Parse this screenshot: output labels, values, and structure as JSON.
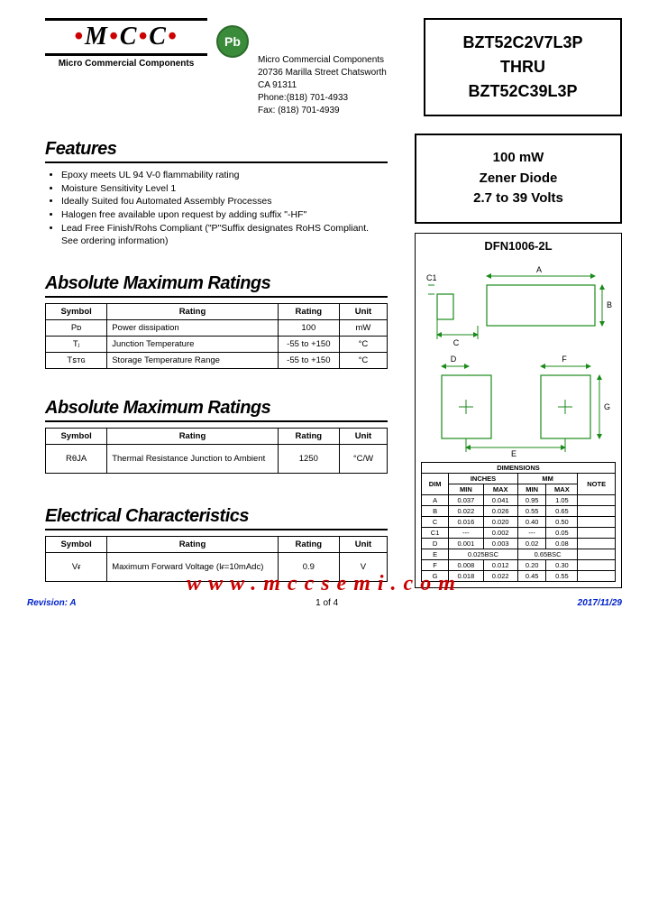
{
  "logo": {
    "text": "MCC",
    "subtitle": "Micro Commercial Components"
  },
  "pb_badge": "Pb",
  "address": {
    "name": "Micro Commercial Components",
    "street": "20736 Marilla Street Chatsworth",
    "city": "CA 91311",
    "phone": "Phone:(818) 701-4933",
    "fax": "Fax:       (818) 701-4939"
  },
  "part_box": {
    "l1": "BZT52C2V7L3P",
    "l2": "THRU",
    "l3": "BZT52C39L3P"
  },
  "desc_box": {
    "l1": "100 mW",
    "l2": "Zener Diode",
    "l3": "2.7 to 39 Volts"
  },
  "features": {
    "title": "Features",
    "items": [
      "Epoxy meets UL 94 V-0 flammability rating",
      "Moisture Sensitivity Level 1",
      "Ideally Suited fou Automated Assembly Processes",
      "Halogen free available upon request by adding suffix \"-HF\"",
      "Lead Free Finish/Rohs Compliant (\"P\"Suffix designates RoHS Compliant.  See ordering information)"
    ]
  },
  "amr1": {
    "title": "Absolute Maximum Ratings",
    "headers": [
      "Symbol",
      "Rating",
      "Rating",
      "Unit"
    ],
    "rows": [
      [
        "Pᴅ",
        "Power dissipation",
        "100",
        "mW"
      ],
      [
        "Tⱼ",
        "Junction Temperature",
        "-55 to +150",
        "°C"
      ],
      [
        "Tꜱᴛɢ",
        "Storage Temperature Range",
        "-55 to +150",
        "°C"
      ]
    ]
  },
  "amr2": {
    "title": "Absolute Maximum Ratings",
    "headers": [
      "Symbol",
      "Rating",
      "Rating",
      "Unit"
    ],
    "rows": [
      [
        "RθJA",
        "Thermal Resistance Junction to Ambient",
        "1250",
        "°C/W"
      ]
    ]
  },
  "elec": {
    "title": "Electrical Characteristics",
    "headers": [
      "Symbol",
      "Rating",
      "Rating",
      "Unit"
    ],
    "rows": [
      [
        "Vᵳ",
        "Maximum Forward Voltage (Iᵳ=10mAdc)",
        "0.9",
        "V"
      ]
    ]
  },
  "package": {
    "title": "DFN1006-2L",
    "dim_title": "DIMENSIONS",
    "dim_headers": {
      "dim": "DIM",
      "in": "INCHES",
      "mm": "MM",
      "note": "NOTE",
      "min": "MIN",
      "max": "MAX"
    },
    "dim_rows": [
      {
        "d": "A",
        "imin": "0.037",
        "imax": "0.041",
        "mmin": "0.95",
        "mmax": "1.05",
        "n": ""
      },
      {
        "d": "B",
        "imin": "0.022",
        "imax": "0.026",
        "mmin": "0.55",
        "mmax": "0.65",
        "n": ""
      },
      {
        "d": "C",
        "imin": "0.016",
        "imax": "0.020",
        "mmin": "0.40",
        "mmax": "0.50",
        "n": ""
      },
      {
        "d": "C1",
        "imin": "---",
        "imax": "0.002",
        "mmin": "---",
        "mmax": "0.05",
        "n": ""
      },
      {
        "d": "D",
        "imin": "0.001",
        "imax": "0.003",
        "mmin": "0.02",
        "mmax": "0.08",
        "n": ""
      },
      {
        "d": "E",
        "imin": "0.025BSC",
        "imax": "",
        "mmin": "0.65BSC",
        "mmax": "",
        "n": ""
      },
      {
        "d": "F",
        "imin": "0.008",
        "imax": "0.012",
        "mmin": "0.20",
        "mmax": "0.30",
        "n": ""
      },
      {
        "d": "G",
        "imin": "0.018",
        "imax": "0.022",
        "mmin": "0.45",
        "mmax": "0.55",
        "n": ""
      }
    ],
    "diagram": {
      "stroke": "#1a8a1a",
      "text_color": "#000000"
    }
  },
  "footer": {
    "url": "www.mccsemi.com",
    "revision": "Revision: A",
    "page": "1 of 4",
    "date": "2017/11/29"
  }
}
